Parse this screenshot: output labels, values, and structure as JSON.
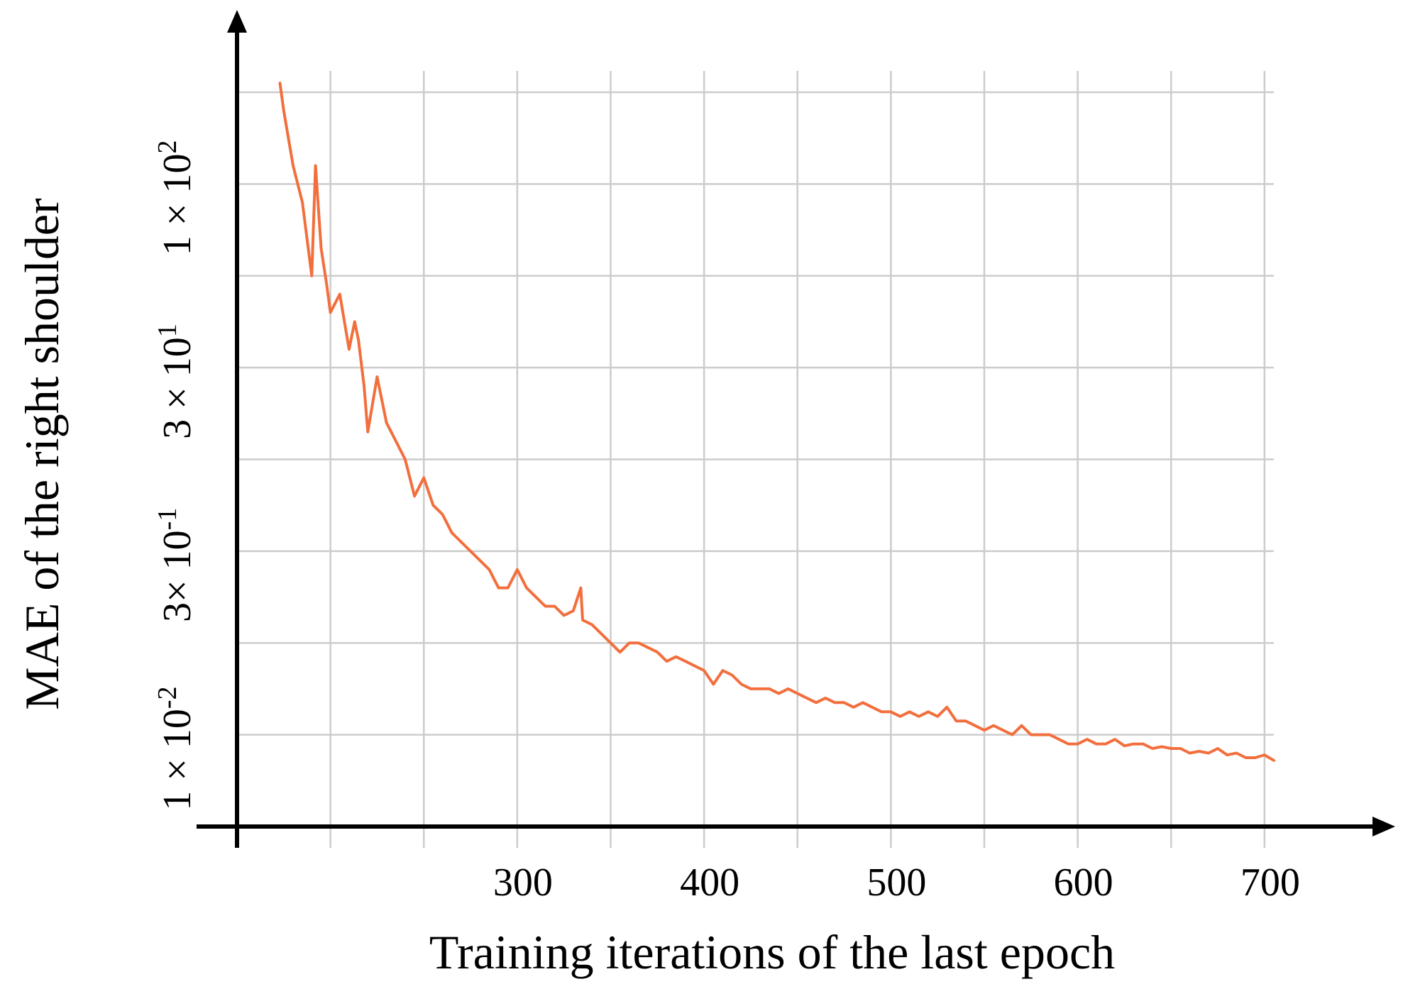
{
  "chart_data": {
    "type": "line",
    "title": "",
    "xlabel": "Training iterations of the last epoch",
    "ylabel": "MAE of the right shoulder",
    "x_tick_labels": [
      "300",
      "400",
      "500",
      "600",
      "700"
    ],
    "y_tick_labels": [
      {
        "base": "1 × 10",
        "exp": "-2"
      },
      {
        "base": "3× 10",
        "exp": "-1"
      },
      {
        "base": "3 × 10",
        "exp": "1"
      },
      {
        "base": "1 × 10",
        "exp": "2"
      }
    ],
    "xlim": [
      150,
      705
    ],
    "ylim": [
      0,
      8
    ],
    "x_grid": [
      200,
      250,
      300,
      350,
      400,
      450,
      500,
      550,
      600,
      650,
      700
    ],
    "y_grid": [
      1,
      2,
      3,
      4,
      5,
      6,
      7,
      8
    ],
    "grid": true,
    "legend": "none",
    "colors": {
      "series": "#F26F3D",
      "axis": "#000000",
      "grid": "#CCCCCC"
    },
    "series": [
      {
        "x": [
          173,
          175,
          180,
          185,
          190,
          192,
          195,
          198,
          200,
          205,
          210,
          213,
          215,
          218,
          220,
          225,
          230,
          235,
          240,
          245,
          250,
          255,
          260,
          265,
          270,
          275,
          280,
          285,
          290,
          295,
          300,
          305,
          310,
          315,
          320,
          325,
          330,
          334,
          335,
          340,
          345,
          350,
          355,
          360,
          365,
          370,
          375,
          380,
          385,
          390,
          395,
          400,
          405,
          410,
          415,
          420,
          425,
          430,
          435,
          440,
          445,
          450,
          455,
          460,
          465,
          470,
          475,
          480,
          485,
          490,
          495,
          500,
          505,
          510,
          515,
          520,
          525,
          530,
          535,
          540,
          545,
          550,
          555,
          560,
          565,
          570,
          575,
          580,
          585,
          590,
          595,
          600,
          605,
          610,
          615,
          620,
          625,
          630,
          635,
          640,
          645,
          650,
          655,
          660,
          665,
          670,
          675,
          680,
          685,
          690,
          695,
          700,
          705
        ],
        "y": [
          8.2,
          7.8,
          7.2,
          6.8,
          6.0,
          7.2,
          6.3,
          5.9,
          5.6,
          5.8,
          5.2,
          5.5,
          5.3,
          4.8,
          4.3,
          4.9,
          4.4,
          4.2,
          4.0,
          3.6,
          3.8,
          3.5,
          3.4,
          3.2,
          3.1,
          3.0,
          2.9,
          2.8,
          2.6,
          2.6,
          2.8,
          2.6,
          2.5,
          2.4,
          2.4,
          2.3,
          2.35,
          2.6,
          2.25,
          2.2,
          2.1,
          2.0,
          1.9,
          2.0,
          2.0,
          1.95,
          1.9,
          1.8,
          1.85,
          1.8,
          1.75,
          1.7,
          1.55,
          1.7,
          1.65,
          1.55,
          1.5,
          1.5,
          1.5,
          1.45,
          1.5,
          1.45,
          1.4,
          1.35,
          1.4,
          1.35,
          1.35,
          1.3,
          1.35,
          1.3,
          1.25,
          1.25,
          1.2,
          1.25,
          1.2,
          1.25,
          1.2,
          1.3,
          1.15,
          1.15,
          1.1,
          1.05,
          1.1,
          1.05,
          1.0,
          1.1,
          1.0,
          1.0,
          1.0,
          0.95,
          0.9,
          0.9,
          0.95,
          0.9,
          0.9,
          0.95,
          0.88,
          0.9,
          0.9,
          0.85,
          0.87,
          0.85,
          0.85,
          0.8,
          0.82,
          0.8,
          0.85,
          0.78,
          0.8,
          0.75,
          0.75,
          0.78,
          0.72
        ]
      }
    ]
  }
}
